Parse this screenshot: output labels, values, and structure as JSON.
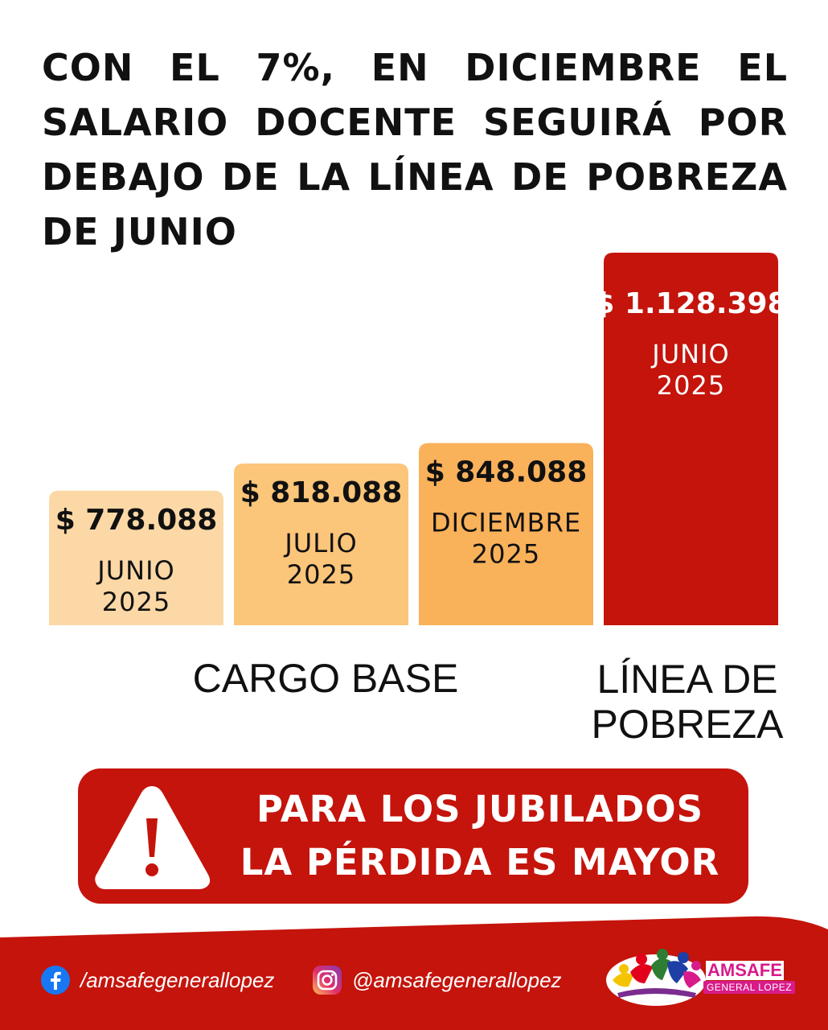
{
  "title": "CON EL 7%, EN DICIEMBRE EL SALARIO DOCENTE SEGUIRÁ POR DEBAJO DE LA LÍNEA DE POBREZA DE JUNIO",
  "chart_data": {
    "type": "bar",
    "title": "CON EL 7%, EN DICIEMBRE EL SALARIO DOCENTE SEGUIRÁ POR DEBAJO DE LA LÍNEA DE POBREZA DE JUNIO",
    "categories": [
      "JUNIO 2025",
      "JULIO 2025",
      "DICIEMBRE 2025",
      "JUNIO 2025"
    ],
    "values": [
      778088,
      818088,
      848088,
      1128398
    ],
    "value_labels": [
      "$ 778.088",
      "$ 818.088",
      "$ 848.088",
      "$ 1.128.398"
    ],
    "bar_labels": [
      [
        "JUNIO",
        "2025"
      ],
      [
        "JULIO",
        "2025"
      ],
      [
        "DICIEMBRE",
        "2025"
      ],
      [
        "JUNIO",
        "2025"
      ]
    ],
    "bar_colors": [
      "#fcd8a6",
      "#fbc57a",
      "#f9b15a",
      "#c4140c"
    ],
    "groups": [
      {
        "label": [
          "CARGO BASE"
        ],
        "bars": [
          0,
          1,
          2
        ]
      },
      {
        "label": [
          "LÍNEA DE",
          "POBREZA"
        ],
        "bars": [
          3
        ]
      }
    ],
    "xlabel": "",
    "ylabel": "",
    "grid": false
  },
  "banner": {
    "lines": [
      "PARA LOS  JUBILADOS",
      "LA PÉRDIDA ES MAYOR"
    ],
    "icon": "warning-triangle-icon",
    "color": "#c4140c"
  },
  "footer": {
    "color": "#c4140c",
    "facebook": {
      "icon": "facebook-icon",
      "handle": "/amsafegenerallopez"
    },
    "instagram": {
      "icon": "instagram-icon",
      "handle": "@amsafegenerallopez"
    },
    "logo": {
      "icon": "amsafe-logo-icon",
      "name": "AMSAFE",
      "subtitle": "GENERAL LOPEZ"
    }
  }
}
